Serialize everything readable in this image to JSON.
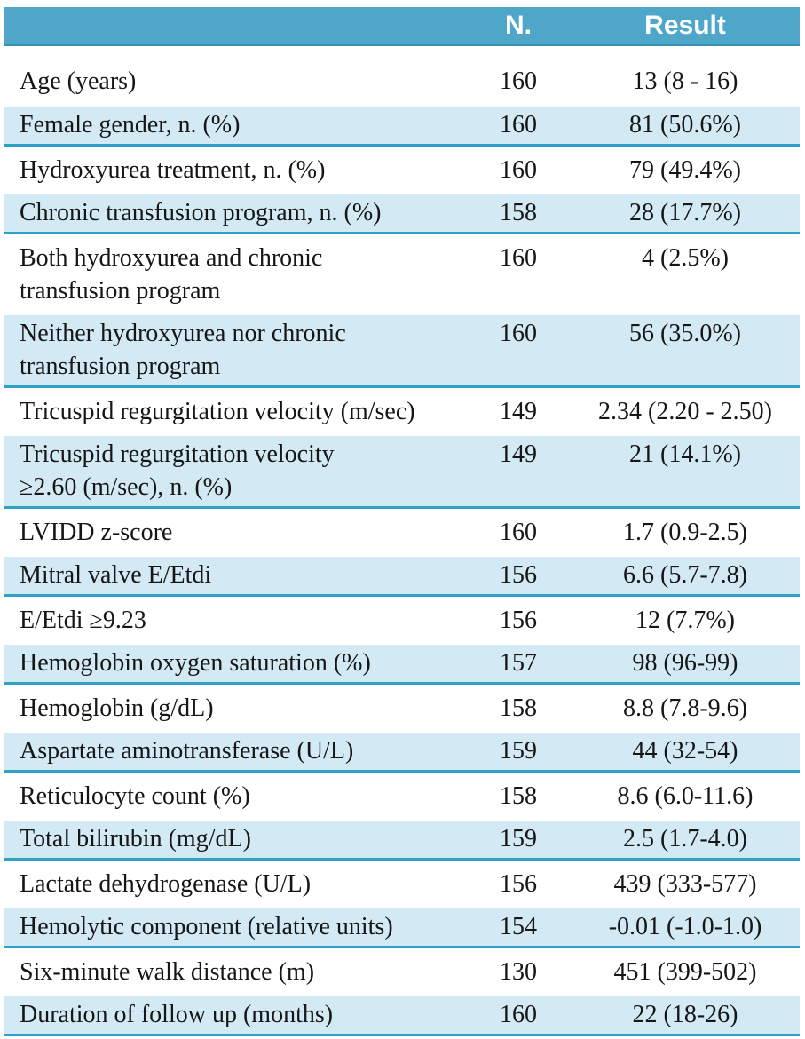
{
  "table": {
    "header": {
      "parameter": "",
      "n": "N.",
      "result": "Result"
    },
    "rows": [
      {
        "label": "Age (years)",
        "n": "160",
        "result": "13 (8 - 16)"
      },
      {
        "label": "Female gender, n. (%)",
        "n": "160",
        "result": "81 (50.6%)"
      },
      {
        "label": "Hydroxyurea treatment, n. (%)",
        "n": "160",
        "result": "79 (49.4%)"
      },
      {
        "label": "Chronic transfusion program, n. (%)",
        "n": "158",
        "result": "28 (17.7%)"
      },
      {
        "label": "Both hydroxyurea and chronic\ntransfusion program",
        "n": "160",
        "result": "4 (2.5%)"
      },
      {
        "label": "Neither hydroxyurea nor chronic\ntransfusion program",
        "n": "160",
        "result": "56 (35.0%)"
      },
      {
        "label": "Tricuspid regurgitation velocity (m/sec)",
        "n": "149",
        "result": "2.34 (2.20 - 2.50)"
      },
      {
        "label": "Tricuspid regurgitation velocity\n≥2.60 (m/sec), n. (%)",
        "n": "149",
        "result": "21 (14.1%)"
      },
      {
        "label": "LVIDD z-score",
        "n": "160",
        "result": "1.7 (0.9-2.5)"
      },
      {
        "label": "Mitral valve E/Etdi",
        "n": "156",
        "result": "6.6 (5.7-7.8)"
      },
      {
        "label": "E/Etdi ≥9.23",
        "n": "156",
        "result": "12 (7.7%)"
      },
      {
        "label": "Hemoglobin oxygen saturation (%)",
        "n": "157",
        "result": "98 (96-99)"
      },
      {
        "label": "Hemoglobin (g/dL)",
        "n": "158",
        "result": "8.8 (7.8-9.6)"
      },
      {
        "label": "Aspartate aminotransferase (U/L)",
        "n": "159",
        "result": "44 (32-54)"
      },
      {
        "label": "Reticulocyte count (%)",
        "n": "158",
        "result": "8.6 (6.0-11.6)"
      },
      {
        "label": "Total bilirubin (mg/dL)",
        "n": "159",
        "result": "2.5 (1.7-4.0)"
      },
      {
        "label": "Lactate dehydrogenase (U/L)",
        "n": "156",
        "result": "439 (333-577)"
      },
      {
        "label": "Hemolytic component (relative units)",
        "n": "154",
        "result": "-0.01 (-1.0-1.0)"
      },
      {
        "label": "Six-minute walk distance (m)",
        "n": "130",
        "result": "451 (399-502)"
      },
      {
        "label": "Duration of follow up (months)",
        "n": "160",
        "result": "22 (18-26)"
      }
    ],
    "colors": {
      "header_bg": "#4ea6c9",
      "header_text": "#ffffff",
      "header_edge": "#3691b4",
      "row_alt_bg": "#d3eaf5",
      "row_border": "#2ba2c6",
      "body_text": "#161616"
    }
  }
}
